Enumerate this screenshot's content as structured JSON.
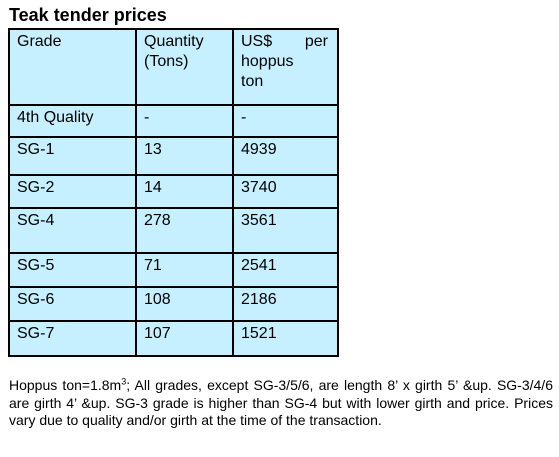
{
  "title": "Teak tender prices",
  "table": {
    "headers": {
      "grade": "Grade",
      "quantity_line1": "Quantity",
      "quantity_line2": "(Tons)",
      "price_word1": "US$",
      "price_word2": "per",
      "price_line2": "hoppus",
      "price_line3": "ton"
    },
    "rows": [
      {
        "grade": "4th Quality",
        "quantity": "-",
        "price": "-"
      },
      {
        "grade": "SG-1",
        "quantity": "13",
        "price": "4939"
      },
      {
        "grade": "SG-2",
        "quantity": "14",
        "price": "3740"
      },
      {
        "grade": "SG-4",
        "quantity": "278",
        "price": "3561"
      },
      {
        "grade": "SG-5",
        "quantity": "71",
        "price": "2541"
      },
      {
        "grade": "SG-6",
        "quantity": "108",
        "price": "2186"
      },
      {
        "grade": "SG-7",
        "quantity": "107",
        "price": "1521"
      }
    ]
  },
  "footnote": {
    "part1": "Hoppus ton=1.8m",
    "superscript": "3",
    "part2": "; All grades, except SG-3/5/6, are length 8’ x girth 5’ &up. SG-3/4/6 are girth 4’ &up. SG-3 grade is higher than SG-4 but with lower girth and price. Prices vary due to quality and/or girth at the time of the transaction."
  },
  "colors": {
    "table_background": "#c6f0ff",
    "border": "#000000",
    "text": "#000000"
  }
}
